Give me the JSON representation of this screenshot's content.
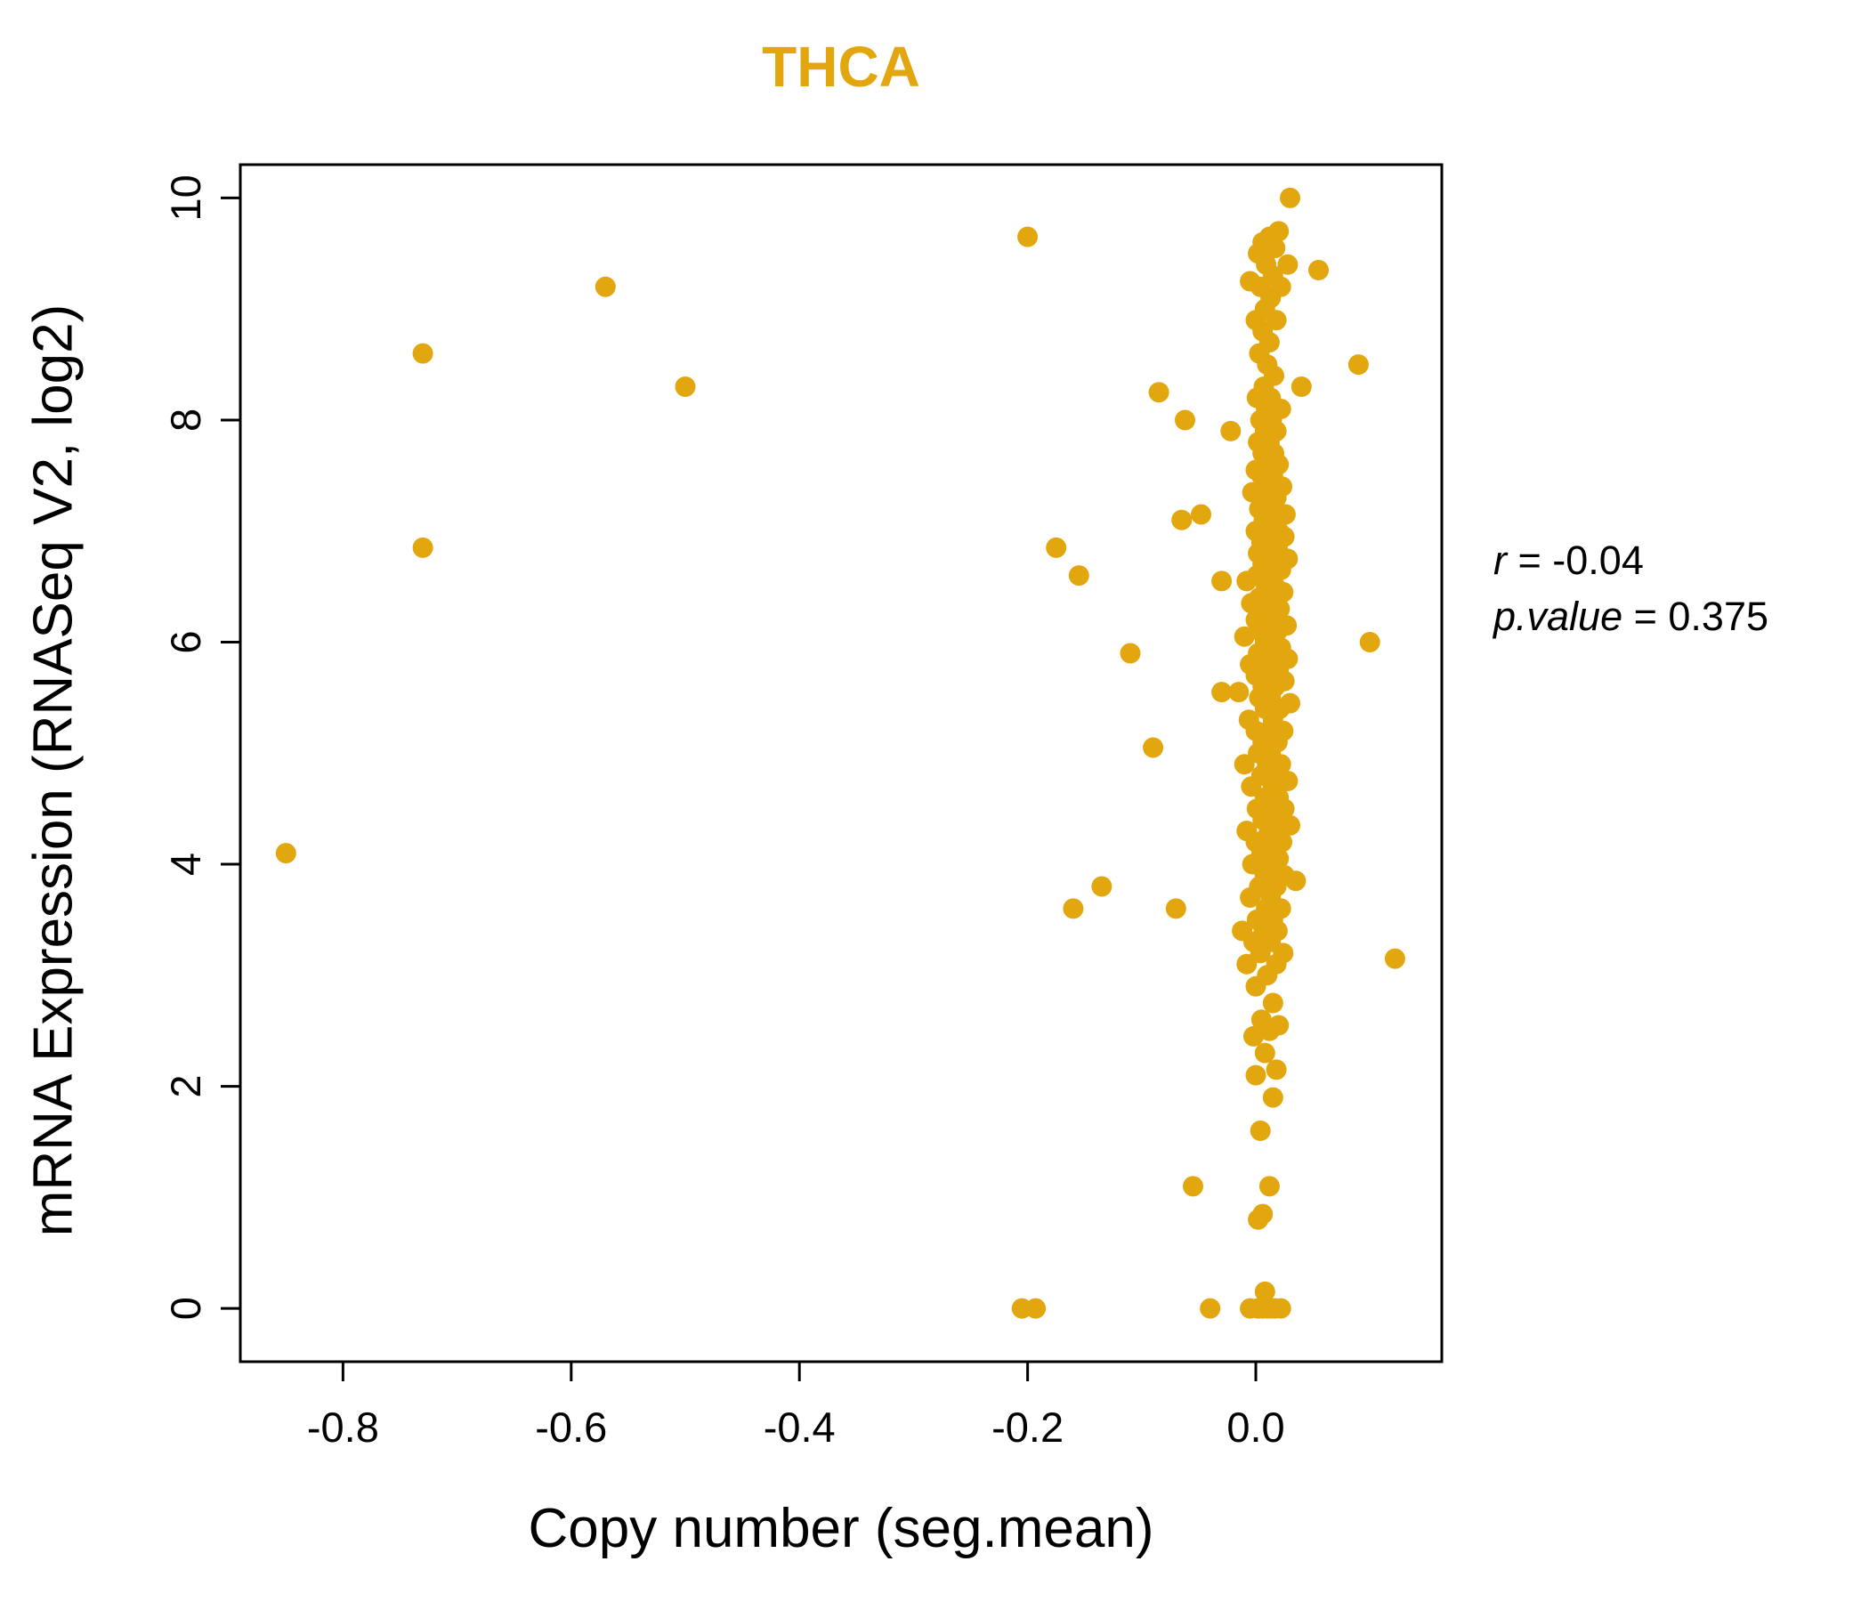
{
  "title": "THCA",
  "accent_color": "#E2A60E",
  "annotation": {
    "line1_var": "r",
    "line1_rest": " = -0.04",
    "line2_var": "p.value",
    "line2_rest": " = 0.375"
  },
  "chart_data": {
    "type": "scatter",
    "title": "THCA",
    "xlabel": "Copy number (seg.mean)",
    "ylabel": "mRNA Expression (RNASeq V2, log2)",
    "xlim": [
      -0.89,
      0.163
    ],
    "ylim": [
      -0.48,
      10.3
    ],
    "xticks": [
      -0.8,
      -0.6,
      -0.4,
      -0.2,
      0.0
    ],
    "xtick_labels": [
      "-0.8",
      "-0.6",
      "-0.4",
      "-0.2",
      "0.0"
    ],
    "yticks": [
      0,
      2,
      4,
      6,
      8,
      10
    ],
    "ytick_labels": [
      "0",
      "2",
      "4",
      "6",
      "8",
      "10"
    ],
    "grid": false,
    "legend": null,
    "point_color": "#E2A60E",
    "points": [
      [
        -0.85,
        4.1
      ],
      [
        -0.73,
        8.6
      ],
      [
        -0.73,
        6.85
      ],
      [
        -0.57,
        9.2
      ],
      [
        -0.5,
        8.3
      ],
      [
        -0.2,
        9.65
      ],
      [
        -0.205,
        0.0
      ],
      [
        -0.193,
        0.0
      ],
      [
        -0.175,
        6.85
      ],
      [
        -0.155,
        6.6
      ],
      [
        -0.16,
        3.6
      ],
      [
        -0.135,
        3.8
      ],
      [
        -0.11,
        5.9
      ],
      [
        -0.09,
        5.05
      ],
      [
        -0.085,
        8.25
      ],
      [
        -0.062,
        8.0
      ],
      [
        -0.065,
        7.1
      ],
      [
        -0.048,
        7.15
      ],
      [
        -0.07,
        3.6
      ],
      [
        -0.055,
        1.1
      ],
      [
        0.1,
        6.0
      ],
      [
        0.122,
        3.15
      ],
      [
        0.09,
        8.5
      ],
      [
        0.055,
        9.35
      ],
      [
        -0.03,
        6.55
      ],
      [
        -0.03,
        5.55
      ],
      [
        -0.022,
        7.9
      ],
      [
        -0.04,
        0.0
      ],
      [
        -0.005,
        0.0
      ],
      [
        0.002,
        0.0
      ],
      [
        0.006,
        0.0
      ],
      [
        0.01,
        0.0
      ],
      [
        0.013,
        0.0
      ],
      [
        0.017,
        0.0
      ],
      [
        0.022,
        0.0
      ],
      [
        0.008,
        0.15
      ],
      [
        0.002,
        0.8
      ],
      [
        0.006,
        0.85
      ],
      [
        0.012,
        1.1
      ],
      [
        0.004,
        1.6
      ],
      [
        0.015,
        1.9
      ],
      [
        0.0,
        2.1
      ],
      [
        0.018,
        2.15
      ],
      [
        0.008,
        2.3
      ],
      [
        -0.002,
        2.45
      ],
      [
        0.012,
        2.5
      ],
      [
        0.02,
        2.55
      ],
      [
        0.005,
        2.6
      ],
      [
        0.015,
        2.75
      ],
      [
        0.0,
        2.9
      ],
      [
        0.01,
        3.0
      ],
      [
        0.018,
        3.1
      ],
      [
        -0.008,
        3.1
      ],
      [
        0.004,
        3.2
      ],
      [
        0.024,
        3.2
      ],
      [
        -0.002,
        3.3
      ],
      [
        0.013,
        3.3
      ],
      [
        0.007,
        3.4
      ],
      [
        0.019,
        3.4
      ],
      [
        -0.012,
        3.4
      ],
      [
        0.001,
        3.5
      ],
      [
        0.015,
        3.5
      ],
      [
        0.009,
        3.6
      ],
      [
        0.022,
        3.6
      ],
      [
        -0.005,
        3.7
      ],
      [
        0.013,
        3.7
      ],
      [
        0.003,
        3.8
      ],
      [
        0.018,
        3.8
      ],
      [
        0.035,
        3.85
      ],
      [
        0.008,
        3.9
      ],
      [
        0.025,
        3.9
      ],
      [
        -0.003,
        4.0
      ],
      [
        0.012,
        4.0
      ],
      [
        0.02,
        4.05
      ],
      [
        0.005,
        4.1
      ],
      [
        0.016,
        4.1
      ],
      [
        0.0,
        4.2
      ],
      [
        0.023,
        4.2
      ],
      [
        0.01,
        4.25
      ],
      [
        0.014,
        4.3
      ],
      [
        -0.008,
        4.3
      ],
      [
        0.03,
        4.35
      ],
      [
        0.006,
        4.4
      ],
      [
        0.018,
        4.4
      ],
      [
        0.001,
        4.5
      ],
      [
        0.012,
        4.5
      ],
      [
        0.025,
        4.5
      ],
      [
        0.008,
        4.6
      ],
      [
        0.02,
        4.6
      ],
      [
        -0.004,
        4.7
      ],
      [
        0.015,
        4.7
      ],
      [
        0.028,
        4.75
      ],
      [
        0.005,
        4.8
      ],
      [
        0.017,
        4.8
      ],
      [
        0.01,
        4.9
      ],
      [
        0.022,
        4.9
      ],
      [
        -0.01,
        4.9
      ],
      [
        0.002,
        5.0
      ],
      [
        0.013,
        5.0
      ],
      [
        0.006,
        5.1
      ],
      [
        0.019,
        5.1
      ],
      [
        0.0,
        5.2
      ],
      [
        0.011,
        5.2
      ],
      [
        0.024,
        5.2
      ],
      [
        0.015,
        5.3
      ],
      [
        -0.006,
        5.3
      ],
      [
        0.008,
        5.4
      ],
      [
        0.021,
        5.4
      ],
      [
        0.03,
        5.45
      ],
      [
        0.003,
        5.5
      ],
      [
        0.013,
        5.5
      ],
      [
        -0.015,
        5.55
      ],
      [
        0.017,
        5.6
      ],
      [
        0.006,
        5.6
      ],
      [
        0.025,
        5.65
      ],
      [
        0.0,
        5.7
      ],
      [
        0.011,
        5.7
      ],
      [
        0.02,
        5.75
      ],
      [
        0.007,
        5.8
      ],
      [
        0.015,
        5.8
      ],
      [
        -0.005,
        5.8
      ],
      [
        0.028,
        5.85
      ],
      [
        0.002,
        5.9
      ],
      [
        0.012,
        5.9
      ],
      [
        0.022,
        5.95
      ],
      [
        0.008,
        6.0
      ],
      [
        0.016,
        6.0
      ],
      [
        -0.01,
        6.05
      ],
      [
        0.004,
        6.1
      ],
      [
        0.019,
        6.1
      ],
      [
        0.027,
        6.15
      ],
      [
        0.0,
        6.2
      ],
      [
        0.012,
        6.2
      ],
      [
        0.007,
        6.3
      ],
      [
        0.021,
        6.3
      ],
      [
        -0.004,
        6.35
      ],
      [
        0.014,
        6.4
      ],
      [
        0.003,
        6.4
      ],
      [
        0.024,
        6.45
      ],
      [
        0.009,
        6.5
      ],
      [
        0.017,
        6.5
      ],
      [
        -0.008,
        6.55
      ],
      [
        0.001,
        6.6
      ],
      [
        0.013,
        6.6
      ],
      [
        0.022,
        6.65
      ],
      [
        0.006,
        6.7
      ],
      [
        0.016,
        6.7
      ],
      [
        0.028,
        6.75
      ],
      [
        0.002,
        6.8
      ],
      [
        0.011,
        6.8
      ],
      [
        0.019,
        6.85
      ],
      [
        0.005,
        6.9
      ],
      [
        0.015,
        6.9
      ],
      [
        0.025,
        6.95
      ],
      [
        0.0,
        7.0
      ],
      [
        0.01,
        7.0
      ],
      [
        0.02,
        7.0
      ],
      [
        0.007,
        7.1
      ],
      [
        0.016,
        7.1
      ],
      [
        0.026,
        7.15
      ],
      [
        0.003,
        7.2
      ],
      [
        0.012,
        7.2
      ],
      [
        0.008,
        7.3
      ],
      [
        0.018,
        7.3
      ],
      [
        -0.003,
        7.35
      ],
      [
        0.013,
        7.4
      ],
      [
        0.023,
        7.4
      ],
      [
        0.005,
        7.5
      ],
      [
        0.015,
        7.5
      ],
      [
        0.0,
        7.55
      ],
      [
        0.01,
        7.6
      ],
      [
        0.02,
        7.6
      ],
      [
        0.006,
        7.7
      ],
      [
        0.016,
        7.7
      ],
      [
        0.002,
        7.8
      ],
      [
        0.012,
        7.8
      ],
      [
        0.008,
        7.9
      ],
      [
        0.018,
        7.9
      ],
      [
        0.004,
        8.0
      ],
      [
        0.014,
        8.0
      ],
      [
        0.009,
        8.1
      ],
      [
        0.022,
        8.1
      ],
      [
        0.001,
        8.2
      ],
      [
        0.013,
        8.2
      ],
      [
        0.007,
        8.3
      ],
      [
        0.04,
        8.3
      ],
      [
        0.016,
        8.4
      ],
      [
        0.01,
        8.5
      ],
      [
        0.003,
        8.6
      ],
      [
        0.012,
        8.7
      ],
      [
        0.006,
        8.8
      ],
      [
        0.018,
        8.9
      ],
      [
        0.0,
        8.9
      ],
      [
        0.008,
        9.0
      ],
      [
        0.013,
        9.1
      ],
      [
        0.004,
        9.2
      ],
      [
        0.022,
        9.2
      ],
      [
        -0.005,
        9.25
      ],
      [
        0.015,
        9.3
      ],
      [
        0.009,
        9.4
      ],
      [
        0.028,
        9.4
      ],
      [
        0.002,
        9.5
      ],
      [
        0.017,
        9.55
      ],
      [
        0.006,
        9.6
      ],
      [
        0.012,
        9.65
      ],
      [
        0.02,
        9.7
      ],
      [
        0.03,
        10.0
      ]
    ]
  }
}
